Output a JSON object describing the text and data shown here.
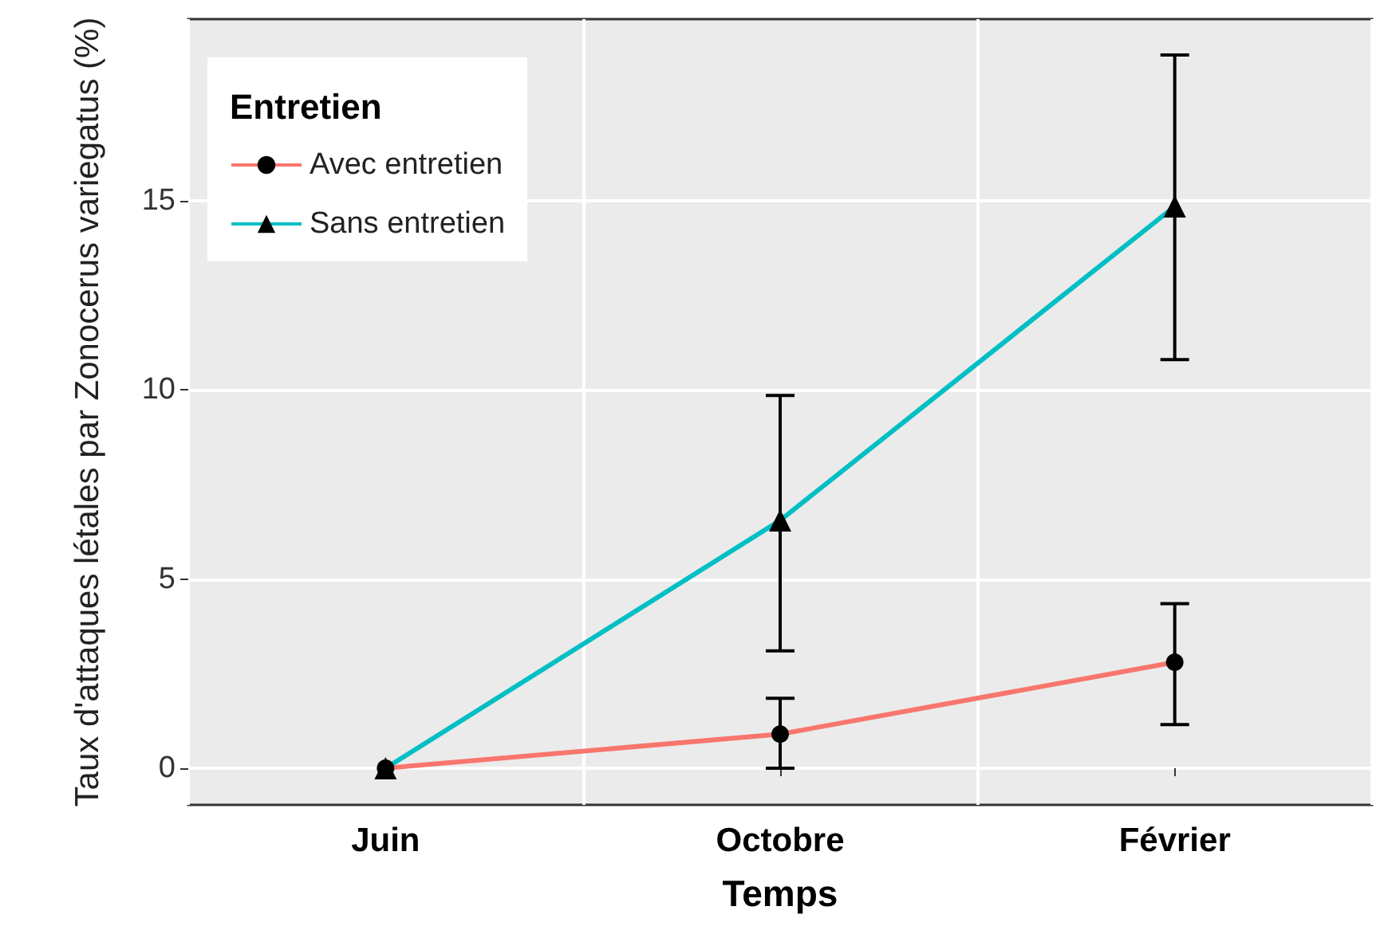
{
  "chart_data": {
    "type": "line",
    "xlabel": "Temps",
    "ylabel": "Taux d'attaques létales par Zonocerus variegatus (%)",
    "legend_title": "Entretien",
    "categories": [
      "Juin",
      "Octobre",
      "Février"
    ],
    "series": [
      {
        "name": "Avec entretien",
        "color": "#f8766d",
        "marker": "circle",
        "values": [
          0,
          0.9,
          2.8
        ],
        "errors": [
          null,
          [
            0,
            1.85
          ],
          [
            1.15,
            4.35
          ]
        ]
      },
      {
        "name": "Sans entretien",
        "color": "#00bfc4",
        "marker": "triangle",
        "values": [
          0,
          6.55,
          14.85
        ],
        "errors": [
          null,
          [
            3.1,
            9.85
          ],
          [
            10.8,
            18.85
          ]
        ]
      }
    ],
    "ylim": [
      -0.97,
      19.8
    ],
    "yticks": [
      0,
      5,
      10,
      15
    ],
    "grid": true,
    "legend": "top left"
  }
}
